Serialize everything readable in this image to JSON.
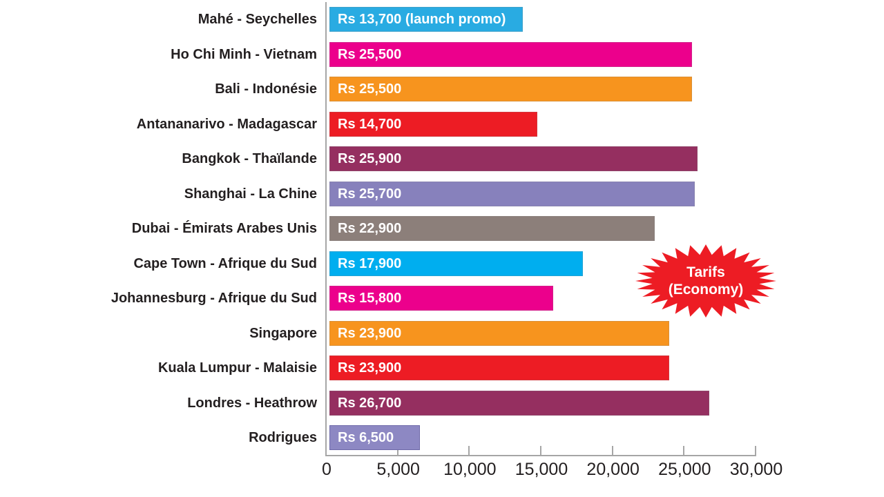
{
  "chart_data": {
    "type": "bar",
    "orientation": "horizontal",
    "title": "",
    "xlabel": "",
    "ylabel": "",
    "xlim": [
      0,
      30000
    ],
    "grid": false,
    "x_tick_values": [
      0,
      5000,
      10000,
      15000,
      20000,
      25000,
      30000
    ],
    "x_tick_labels": [
      "0",
      "5,000",
      "10,000",
      "15,000",
      "20,000",
      "25,000",
      "30,000"
    ],
    "categories": [
      "Mahé - Seychelles",
      "Ho Chi Minh - Vietnam",
      "Bali - Indonésie",
      "Antananarivo - Madagascar",
      "Bangkok - Thaïlande",
      "Shanghai - La Chine",
      "Dubai - Émirats Arabes Unis",
      "Cape Town - Afrique du Sud",
      "Johannesburg - Afrique du Sud",
      "Singapore",
      "Kuala Lumpur - Malaisie",
      "Londres - Heathrow",
      "Rodrigues"
    ],
    "values": [
      13700,
      25500,
      25500,
      14700,
      25900,
      25700,
      22900,
      17900,
      15800,
      23900,
      23900,
      26700,
      6500
    ],
    "bar_labels": [
      "Rs 13,700 (launch promo)",
      "Rs 25,500",
      "Rs 25,500",
      "Rs 14,700",
      "Rs 25,900",
      "Rs 25,700",
      "Rs 22,900",
      "Rs 17,900",
      "Rs 15,800",
      "Rs 23,900",
      "Rs 23,900",
      "Rs 26,700",
      "Rs 6,500"
    ],
    "bar_colors": [
      "#29abe2",
      "#ec008c",
      "#f7941e",
      "#ed1c24",
      "#952f60",
      "#8781bc",
      "#8c7f7a",
      "#00aeef",
      "#ec008c",
      "#f7941e",
      "#ed1c24",
      "#952f60",
      "#8d88c3"
    ],
    "bar_border_colors": [
      "rgba(130,130,130,0.25)",
      "rgba(130,130,130,0.25)",
      "rgba(130,130,130,0.25)",
      "rgba(130,130,130,0.25)",
      "rgba(130,130,130,0.25)",
      "rgba(130,130,130,0.25)",
      "rgba(130,130,130,0.25)",
      "rgba(130,130,130,0.25)",
      "rgba(130,130,130,0.25)",
      "rgba(130,130,130,0.25)",
      "rgba(130,130,130,0.25)",
      "rgba(130,130,130,0.25)",
      "#6e69a9"
    ],
    "annotation": {
      "lines": [
        "Tarifs",
        "(Economy)"
      ],
      "fill_color": "#ed1c24",
      "text_color": "#ffffff"
    },
    "legend": null
  },
  "badge": {
    "line1": "Tarifs",
    "line2": "(Economy)"
  },
  "colors": {
    "axis": "#a6a6a6",
    "category_text": "#231f20",
    "tick_text": "#231f20",
    "background": "#ffffff"
  }
}
